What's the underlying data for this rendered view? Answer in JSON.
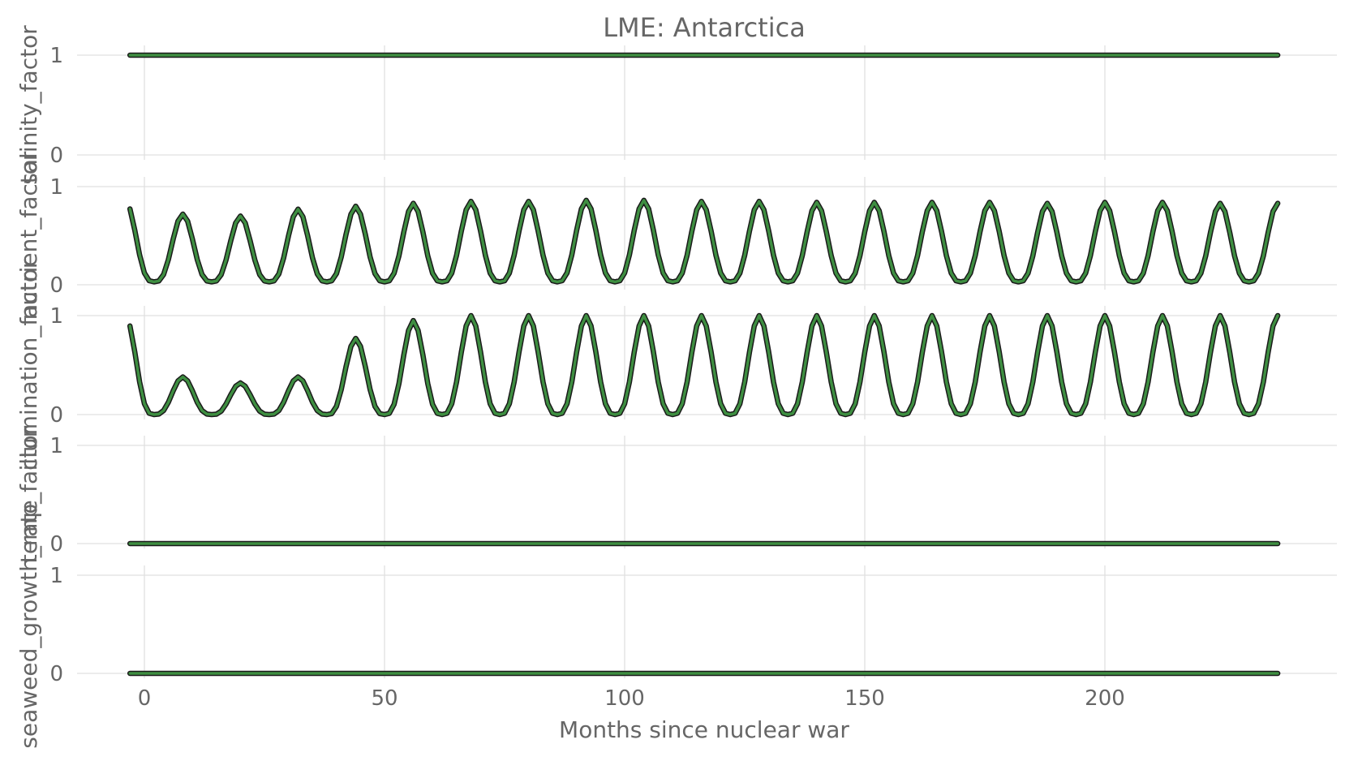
{
  "chart_data": {
    "type": "line",
    "title": "LME: Antarctica",
    "xlabel": "Months since nuclear war",
    "xlim": [
      -7,
      247
    ],
    "x_ticks": [
      0,
      50,
      100,
      150,
      200
    ],
    "x_tick_labels": [
      "0",
      "50",
      "100",
      "150",
      "200"
    ],
    "x_start": -3,
    "x_end": 236,
    "grid": true,
    "line_color": "#3e8e41",
    "outline_color": "#1a1a1a",
    "panels": [
      {
        "ylabel": "salinity_factor",
        "ylim": [
          0,
          1
        ],
        "y_ticks": [
          0,
          1
        ],
        "y_tick_labels": [
          "0",
          "1"
        ],
        "pattern": "constant",
        "value": 1
      },
      {
        "ylabel": "nutrient_factor",
        "ylim": [
          0,
          1
        ],
        "y_ticks": [
          0,
          1
        ],
        "y_tick_labels": [
          "0",
          "1"
        ],
        "pattern": "seasonal",
        "period_months": 12,
        "min_value": 0.03,
        "first_peak_month": 8,
        "peaks": [
          0.72,
          0.7,
          0.77,
          0.8,
          0.83,
          0.85,
          0.85,
          0.86,
          0.86,
          0.85,
          0.85,
          0.84,
          0.84,
          0.84,
          0.84,
          0.83,
          0.84,
          0.84,
          0.83,
          0.83,
          0.83
        ],
        "start_value": 0.86,
        "end_value": 0.87
      },
      {
        "ylabel": "illumination_factor",
        "ylim": [
          0,
          1
        ],
        "y_ticks": [
          0,
          1
        ],
        "y_tick_labels": [
          "0",
          "1"
        ],
        "pattern": "seasonal",
        "period_months": 12,
        "min_value": 0,
        "first_peak_month": 8,
        "peaks": [
          0.38,
          0.32,
          0.38,
          0.77,
          0.95,
          1.0,
          1.0,
          1.0,
          1.0,
          1.0,
          1.0,
          1.0,
          1.0,
          1.0,
          1.0,
          1.0,
          1.0,
          1.0,
          1.0,
          1.0,
          1.0
        ],
        "start_value": 1.0,
        "end_value": 1.0
      },
      {
        "ylabel": "temp_factor",
        "ylim": [
          0,
          1
        ],
        "y_ticks": [
          0,
          1
        ],
        "y_tick_labels": [
          "0",
          "1"
        ],
        "pattern": "constant",
        "value": 0
      },
      {
        "ylabel": "seaweed_growth_rate",
        "ylim": [
          0,
          1
        ],
        "y_ticks": [
          0,
          1
        ],
        "y_tick_labels": [
          "0",
          "1"
        ],
        "pattern": "constant",
        "value": 0
      }
    ]
  }
}
